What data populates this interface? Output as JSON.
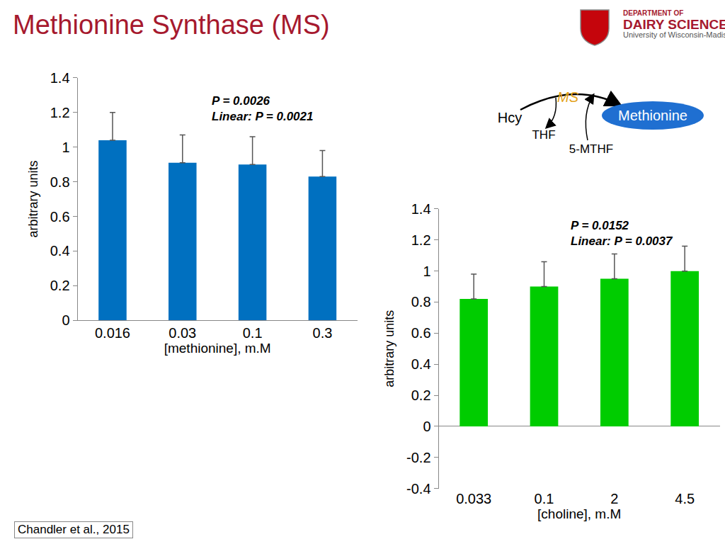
{
  "header": {
    "title": "Methionine Synthase (MS)",
    "logo": [
      "DEPARTMENT OF",
      "DAIRY SCIENCE",
      "University of Wisconsin-Madison"
    ]
  },
  "diagram": {
    "substrate": "Hcy",
    "enzyme": "MS",
    "product": "Methionine",
    "cofactor_out": "THF",
    "cofactor_in": "5-MTHF"
  },
  "citation": "Chandler et al., 2015",
  "chart_data": [
    {
      "type": "bar",
      "x_label": "[methionine], m.M",
      "y_label": "arbitrary units",
      "annotations": [
        "P = 0.0026",
        "Linear: P = 0.0021"
      ],
      "categories": [
        "0.016",
        "0.03",
        "0.1",
        "0.3"
      ],
      "values": [
        1.04,
        0.91,
        0.9,
        0.83
      ],
      "errors": [
        0.16,
        0.16,
        0.16,
        0.15
      ],
      "color": "#0070C0",
      "ylim": [
        0,
        1.4
      ],
      "yticks": [
        0,
        0.2,
        0.4,
        0.6,
        0.8,
        1,
        1.2,
        1.4
      ],
      "grid": false
    },
    {
      "type": "bar",
      "x_label": "[choline], m.M",
      "y_label": "arbitrary units",
      "annotations": [
        "P = 0.0152",
        "Linear: P = 0.0037"
      ],
      "categories": [
        "0.033",
        "0.1",
        "2",
        "4.5"
      ],
      "values": [
        0.82,
        0.9,
        0.95,
        1.0
      ],
      "errors": [
        0.16,
        0.16,
        0.16,
        0.16
      ],
      "color": "#00CC00",
      "ylim": [
        -0.4,
        1.4
      ],
      "yticks": [
        -0.4,
        -0.2,
        0,
        0.2,
        0.4,
        0.6,
        0.8,
        1,
        1.2,
        1.4
      ],
      "grid": false
    }
  ]
}
